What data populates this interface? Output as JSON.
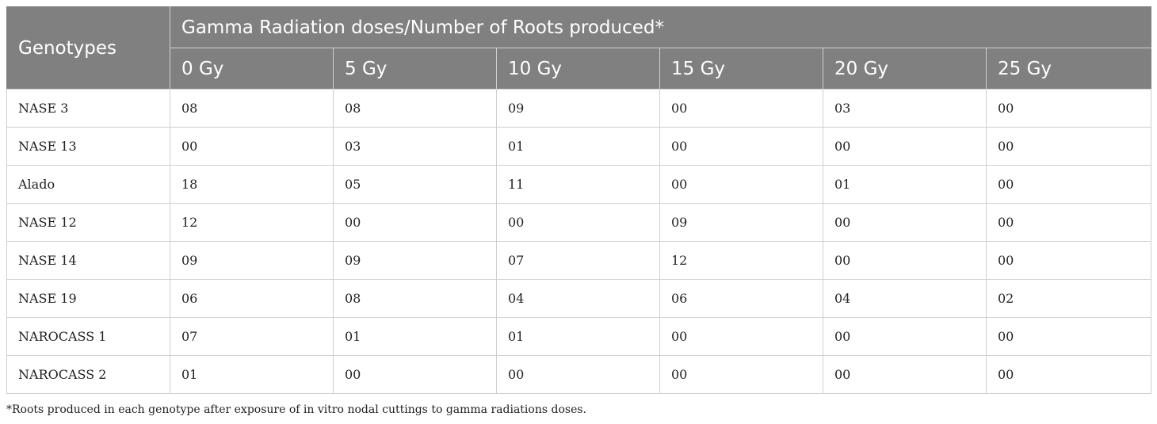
{
  "table": {
    "header": {
      "genotypes_label": "Genotypes",
      "group_label": "Gamma Radiation doses/Number of Roots produced*",
      "doses": [
        "0 Gy",
        "5 Gy",
        "10 Gy",
        "15 Gy",
        "20 Gy",
        "25 Gy"
      ]
    },
    "rows": [
      {
        "genotype": "NASE 3",
        "values": [
          "08",
          "08",
          "09",
          "00",
          "03",
          "00"
        ]
      },
      {
        "genotype": "NASE 13",
        "values": [
          "00",
          "03",
          "01",
          "00",
          "00",
          "00"
        ]
      },
      {
        "genotype": "Alado",
        "values": [
          "18",
          "05",
          "11",
          "00",
          "01",
          "00"
        ]
      },
      {
        "genotype": "NASE 12",
        "values": [
          "12",
          "00",
          "00",
          "09",
          "00",
          "00"
        ]
      },
      {
        "genotype": "NASE 14",
        "values": [
          "09",
          "09",
          "07",
          "12",
          "00",
          "00"
        ]
      },
      {
        "genotype": "NASE 19",
        "values": [
          "06",
          "08",
          "04",
          "06",
          "04",
          "02"
        ]
      },
      {
        "genotype": "NAROCASS 1",
        "values": [
          "07",
          "01",
          "01",
          "00",
          "00",
          "00"
        ]
      },
      {
        "genotype": "NAROCASS 2",
        "values": [
          "01",
          "00",
          "00",
          "00",
          "00",
          "00"
        ]
      }
    ]
  },
  "footnote": "*Roots produced in each genotype after exposure of in vitro nodal cuttings to gamma radiations doses.",
  "colors": {
    "header_background": "#808080",
    "header_text": "#ffffff",
    "grid_line": "#cfcfcf"
  }
}
